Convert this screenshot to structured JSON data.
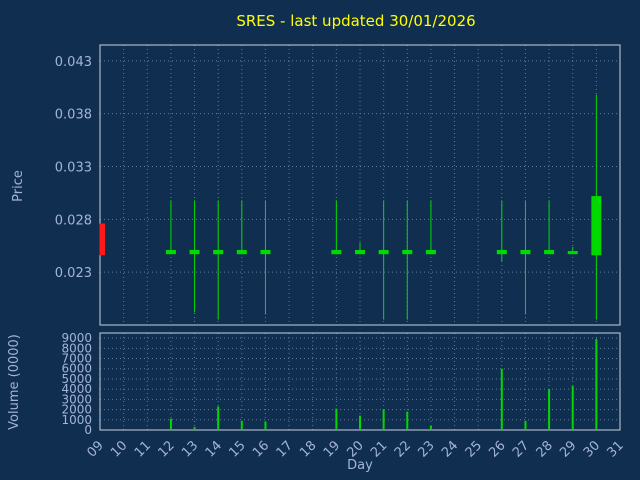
{
  "colors": {
    "background": "#102e50",
    "title": "#ffff00",
    "axis_text": "#a3b3dc",
    "grid": "#5f7d99",
    "border": "#c8d2e0",
    "up": "#00d800",
    "down": "#ff1a1a"
  },
  "chart_data": [
    {
      "type": "candlestick",
      "panel": "price",
      "title": "SRES - last updated 30/01/2026",
      "xlabel": "Day",
      "ylabel": "Price",
      "x_ticks": [
        "09",
        "10",
        "11",
        "12",
        "13",
        "14",
        "15",
        "16",
        "17",
        "18",
        "19",
        "20",
        "21",
        "22",
        "23",
        "24",
        "25",
        "26",
        "27",
        "28",
        "29",
        "30",
        "31"
      ],
      "y_ticks": [
        "0.023",
        "0.028",
        "0.033",
        "0.038",
        "0.043"
      ],
      "ylim": [
        0.018,
        0.0445
      ],
      "grid": true,
      "candles": [
        {
          "day": "09",
          "open": 0.0276,
          "high": 0.0276,
          "low": 0.0246,
          "close": 0.0246,
          "direction": "down"
        },
        {
          "day": "12",
          "open": 0.0247,
          "high": 0.0298,
          "low": 0.0247,
          "close": 0.0251,
          "direction": "up"
        },
        {
          "day": "13",
          "open": 0.0247,
          "high": 0.0298,
          "low": 0.0192,
          "close": 0.0251,
          "direction": "up"
        },
        {
          "day": "14",
          "open": 0.0247,
          "high": 0.0298,
          "low": 0.0185,
          "close": 0.0251,
          "direction": "up"
        },
        {
          "day": "15",
          "open": 0.0247,
          "high": 0.0298,
          "low": 0.0247,
          "close": 0.0251,
          "direction": "up"
        },
        {
          "day": "16",
          "open": 0.0247,
          "high": 0.0298,
          "low": 0.019,
          "close": 0.0251,
          "direction": "up"
        },
        {
          "day": "19",
          "open": 0.0247,
          "high": 0.0298,
          "low": 0.0247,
          "close": 0.0251,
          "direction": "up"
        },
        {
          "day": "20",
          "open": 0.0247,
          "high": 0.0258,
          "low": 0.0247,
          "close": 0.0251,
          "direction": "up"
        },
        {
          "day": "21",
          "open": 0.0247,
          "high": 0.0298,
          "low": 0.0185,
          "close": 0.0251,
          "direction": "up"
        },
        {
          "day": "22",
          "open": 0.0247,
          "high": 0.0298,
          "low": 0.0185,
          "close": 0.0251,
          "direction": "up"
        },
        {
          "day": "23",
          "open": 0.0247,
          "high": 0.0298,
          "low": 0.0247,
          "close": 0.0251,
          "direction": "up"
        },
        {
          "day": "26",
          "open": 0.0247,
          "high": 0.0298,
          "low": 0.024,
          "close": 0.0251,
          "direction": "up"
        },
        {
          "day": "27",
          "open": 0.0247,
          "high": 0.0298,
          "low": 0.019,
          "close": 0.0251,
          "direction": "up"
        },
        {
          "day": "28",
          "open": 0.0247,
          "high": 0.0298,
          "low": 0.0247,
          "close": 0.0251,
          "direction": "up"
        },
        {
          "day": "29",
          "open": 0.0247,
          "high": 0.0254,
          "low": 0.0247,
          "close": 0.025,
          "direction": "up"
        },
        {
          "day": "30",
          "open": 0.0246,
          "high": 0.0398,
          "low": 0.0185,
          "close": 0.0302,
          "direction": "up"
        }
      ]
    },
    {
      "type": "bar",
      "panel": "volume",
      "ylabel": "Volume (0000)",
      "y_ticks": [
        0,
        1000,
        2000,
        3000,
        4000,
        5000,
        6000,
        7000,
        8000,
        9000
      ],
      "ylim": [
        0,
        9500
      ],
      "grid": true,
      "bars": [
        {
          "day": "12",
          "value": 1100
        },
        {
          "day": "13",
          "value": 300
        },
        {
          "day": "14",
          "value": 2300
        },
        {
          "day": "15",
          "value": 900
        },
        {
          "day": "16",
          "value": 800
        },
        {
          "day": "19",
          "value": 2100
        },
        {
          "day": "20",
          "value": 1400
        },
        {
          "day": "21",
          "value": 2000
        },
        {
          "day": "22",
          "value": 1800
        },
        {
          "day": "23",
          "value": 400
        },
        {
          "day": "26",
          "value": 6000
        },
        {
          "day": "27",
          "value": 900
        },
        {
          "day": "28",
          "value": 4000
        },
        {
          "day": "29",
          "value": 4300
        },
        {
          "day": "30",
          "value": 8900
        }
      ]
    }
  ]
}
